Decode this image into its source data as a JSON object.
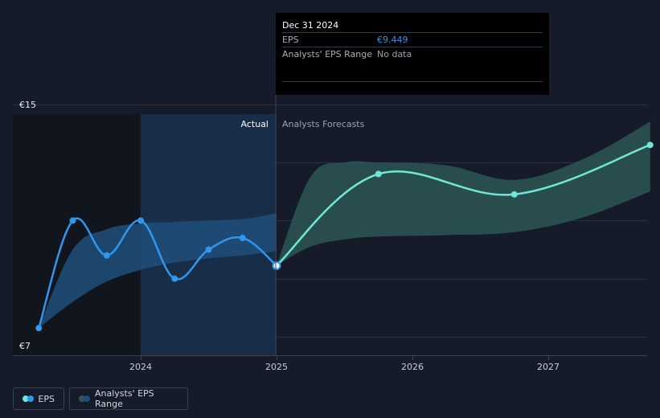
{
  "tooltip": {
    "date": "Dec 31 2024",
    "rows": [
      {
        "label": "EPS",
        "value": "€9.449"
      },
      {
        "label": "Analysts' EPS Range",
        "value": "No data"
      }
    ]
  },
  "legend": {
    "eps_label": "EPS",
    "range_label": "Analysts' EPS Range"
  },
  "colors": {
    "background": "#151b28",
    "eps_actual": "#2f97ee",
    "eps_forecast": "#6ee7d6",
    "range_forecast": "#2e5a56",
    "range_actual": "#1f4f7a",
    "actual_highlight": "#183453"
  },
  "chart_data": {
    "type": "line",
    "y_tick_labels": [
      "€15",
      "€7"
    ],
    "ylim": [
      7,
      15
    ],
    "x_tick_labels": [
      "2024",
      "2025",
      "2026",
      "2027"
    ],
    "xlim": [
      2023.25,
      2027.75
    ],
    "region_labels": {
      "actual": "Actual",
      "forecast": "Analysts Forecasts"
    },
    "grid": true,
    "series": [
      {
        "name": "EPS",
        "kind": "actual",
        "x": [
          2023.25,
          2023.5,
          2023.75,
          2024.0,
          2024.25,
          2024.5,
          2024.75,
          2025.0
        ],
        "y": [
          7.3,
          11.0,
          9.8,
          11.0,
          9.0,
          10.0,
          10.4,
          9.449
        ]
      },
      {
        "name": "EPS",
        "kind": "forecast",
        "x": [
          2025.0,
          2025.75,
          2026.75,
          2027.75
        ],
        "y": [
          9.449,
          12.6,
          11.9,
          13.6
        ]
      }
    ],
    "ranges": [
      {
        "name": "Analysts' EPS Range",
        "kind": "actual",
        "x": [
          2023.25,
          2023.5,
          2023.75,
          2024.0,
          2024.25,
          2024.5,
          2024.75,
          2025.0
        ],
        "low": [
          7.3,
          8.2,
          8.9,
          9.3,
          9.55,
          9.7,
          9.8,
          9.95
        ],
        "high": [
          7.3,
          10.0,
          10.7,
          10.9,
          10.95,
          11.0,
          11.05,
          11.25
        ]
      },
      {
        "name": "Analysts' EPS Range",
        "kind": "forecast",
        "x": [
          2025.0,
          2025.25,
          2025.5,
          2025.75,
          2026.25,
          2026.75,
          2027.25,
          2027.75
        ],
        "low": [
          9.449,
          10.1,
          10.35,
          10.45,
          10.5,
          10.6,
          11.1,
          12.0
        ],
        "high": [
          9.449,
          12.5,
          13.0,
          13.0,
          12.9,
          12.4,
          13.1,
          14.4
        ]
      }
    ],
    "highlight_point": {
      "x": 2025.0,
      "y": 9.449
    }
  }
}
